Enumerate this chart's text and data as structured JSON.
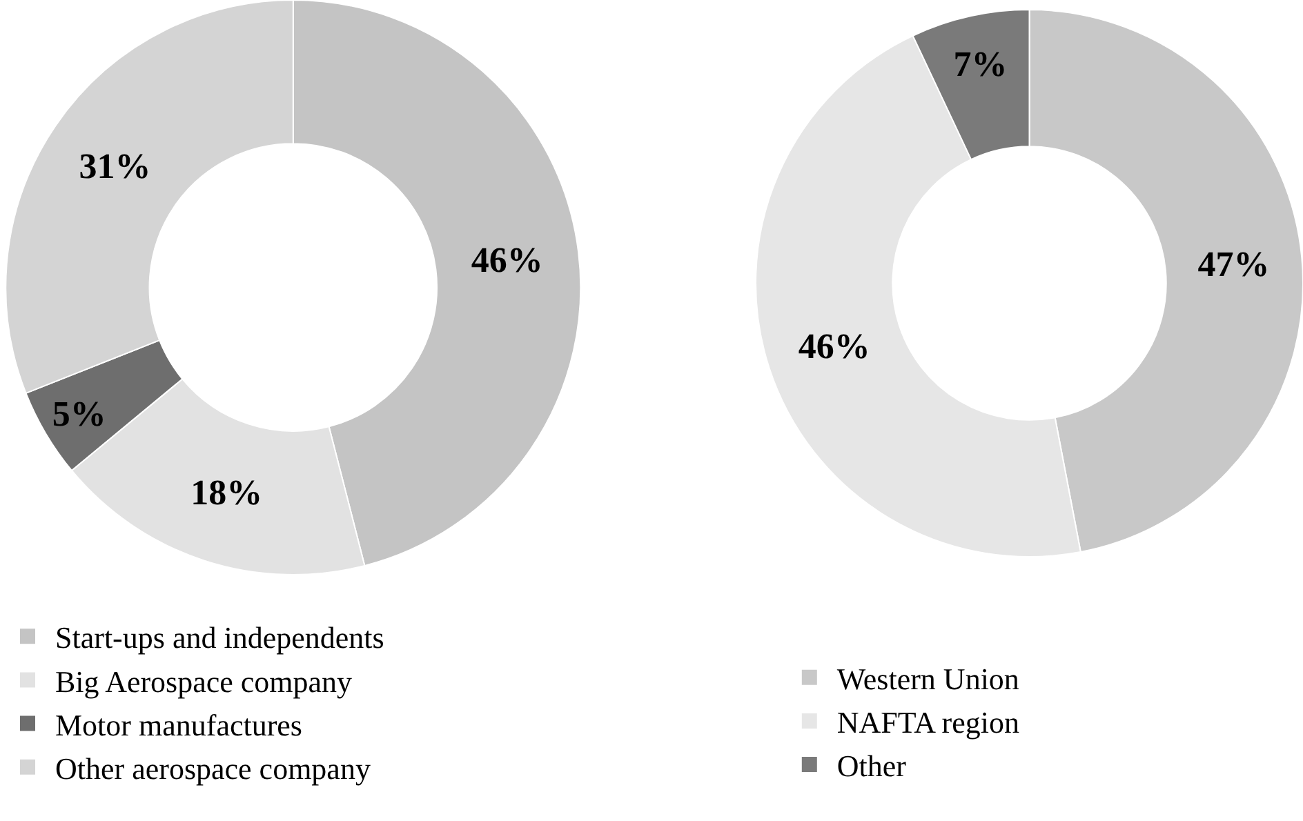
{
  "chart_data": [
    {
      "type": "donut",
      "categories": [
        "Start-ups and independents",
        "Big Aerospace company",
        "Motor manufactures",
        "Other aerospace company"
      ],
      "values": [
        46,
        18,
        5,
        31
      ],
      "colors": [
        "#c4c4c4",
        "#e2e2e2",
        "#6e6e6e",
        "#d4d4d4"
      ],
      "value_labels": [
        "46%",
        "18%",
        "5%",
        "31%"
      ],
      "legend": "bottom"
    },
    {
      "type": "donut",
      "categories": [
        "Western Union",
        "NAFTA region",
        "Other"
      ],
      "values": [
        47,
        46,
        7
      ],
      "colors": [
        "#c8c8c8",
        "#e6e6e6",
        "#7a7a7a"
      ],
      "value_labels": [
        "47%",
        "46%",
        "7%"
      ],
      "legend": "bottom"
    }
  ]
}
